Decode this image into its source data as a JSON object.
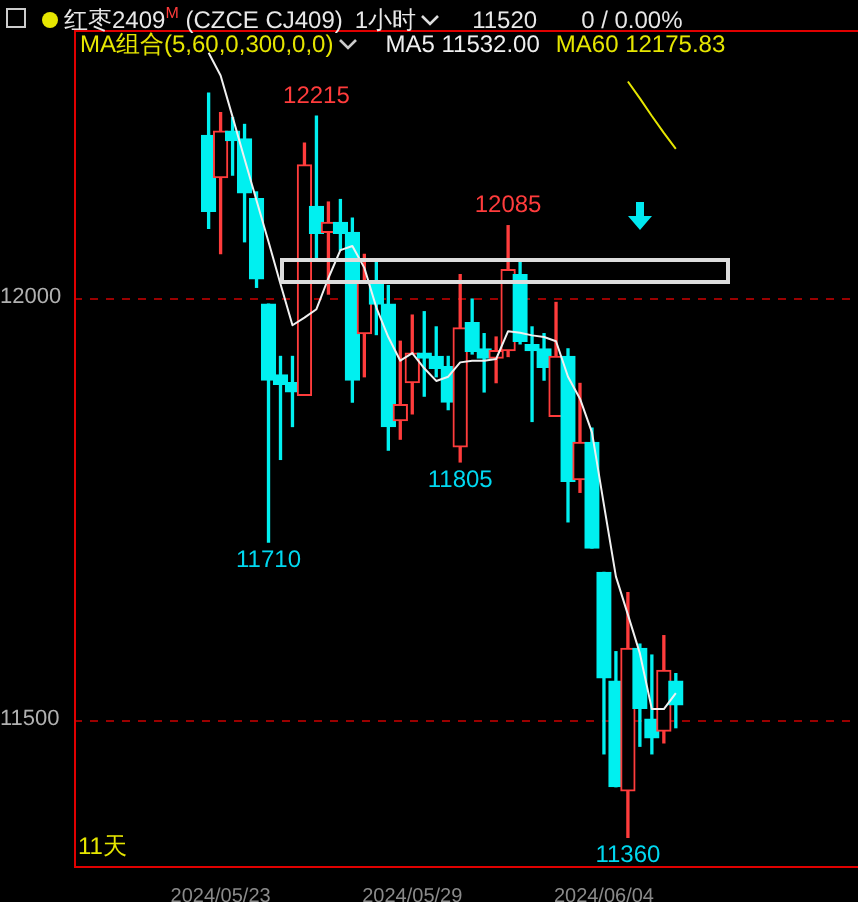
{
  "chart_data": {
    "type": "candlestick",
    "title": "红枣2409$^{M}$ (CZCE CJ409)",
    "subtitle": "1小时",
    "categories": [
      null,
      "2024/05/23",
      null,
      null,
      null,
      null,
      null,
      null,
      null,
      null,
      null,
      null,
      null,
      null,
      null,
      null,
      null,
      "2024/05/29",
      null,
      null,
      null,
      null,
      null,
      null,
      null,
      null,
      null,
      null,
      null,
      null,
      null,
      null,
      null,
      "2024/06/04",
      null,
      null,
      null,
      null,
      null,
      null
    ],
    "ohlc": [
      [
        12192,
        12242,
        12082,
        12102
      ],
      [
        12142,
        12219,
        12052,
        12197
      ],
      [
        12197,
        12213,
        12145,
        12186
      ],
      [
        12188,
        12205,
        12066,
        12124
      ],
      [
        12117,
        12125,
        12012,
        12022
      ],
      [
        11992,
        11992,
        11710,
        11902
      ],
      [
        11908,
        11930,
        11808,
        11897
      ],
      [
        11899,
        11930,
        11847,
        11888
      ],
      [
        11884,
        12183,
        11884,
        12157
      ],
      [
        12108,
        12215,
        12047,
        12076
      ],
      [
        12077,
        12113,
        12004,
        12089
      ],
      [
        12089,
        12116,
        12056,
        12076
      ],
      [
        12077,
        12094,
        11876,
        11902
      ],
      [
        11957,
        12051,
        11906,
        12018
      ],
      [
        12020,
        12045,
        11956,
        11992
      ],
      [
        11992,
        12014,
        11819,
        11847
      ],
      [
        11854,
        11948,
        11832,
        11873
      ],
      [
        11899,
        11979,
        11862,
        11934
      ],
      [
        11934,
        11983,
        11883,
        11928
      ],
      [
        11930,
        11965,
        11906,
        11916
      ],
      [
        11918,
        11930,
        11867,
        11876
      ],
      [
        11823,
        12027,
        11805,
        11964
      ],
      [
        11970,
        11998,
        11933,
        11936
      ],
      [
        11939,
        11957,
        11888,
        11928
      ],
      [
        11928,
        11953,
        11899,
        11937
      ],
      [
        11937,
        12085,
        11930,
        12033
      ],
      [
        12027,
        12045,
        11945,
        11948
      ],
      [
        11944,
        11965,
        11853,
        11937
      ],
      [
        11939,
        11957,
        11902,
        11917
      ],
      [
        11859,
        11994,
        11859,
        11930
      ],
      [
        11930,
        11939,
        11734,
        11782
      ],
      [
        11784,
        11898,
        11769,
        11828
      ],
      [
        11828,
        11845,
        11703,
        11703
      ],
      [
        11674,
        11674,
        11459,
        11549
      ],
      [
        11545,
        11580,
        11420,
        11420
      ],
      [
        11415,
        11650,
        11360,
        11584
      ],
      [
        11584,
        11589,
        11468,
        11513
      ],
      [
        11500,
        11576,
        11459,
        11478
      ],
      [
        11486,
        11599,
        11472,
        11558
      ],
      [
        11545,
        11554,
        11490,
        11517
      ]
    ],
    "colors": [
      "#00f0f0",
      "#ff3c3c",
      "#00f0f0",
      "#00f0f0",
      "#00f0f0",
      "#00f0f0",
      "#00f0f0",
      "#00f0f0",
      "#ff3c3c",
      "#00f0f0",
      "#ff3c3c",
      "#00f0f0",
      "#00f0f0",
      "#ff3c3c",
      "#00f0f0",
      "#00f0f0",
      "#ff3c3c",
      "#ff3c3c",
      "#00f0f0",
      "#00f0f0",
      "#00f0f0",
      "#ff3c3c",
      "#00f0f0",
      "#00f0f0",
      "#ff3c3c",
      "#ff3c3c",
      "#00f0f0",
      "#00f0f0",
      "#00f0f0",
      "#ff3c3c",
      "#00f0f0",
      "#ff3c3c",
      "#00f0f0",
      "#00f0f0",
      "#00f0f0",
      "#ff3c3c",
      "#00f0f0",
      "#00f0f0",
      "#ff3c3c",
      "#00f0f0"
    ],
    "series": [
      {
        "type": "line",
        "name": "MA5 11532.00",
        "color": "#f0f0f0",
        "values": [
          12290,
          12263,
          12214,
          12164,
          12115,
          12066,
          12016,
          11967,
          11976,
          11986,
          12023,
          12056,
          12061,
          12035,
          11988,
          11953,
          11925,
          11934,
          11916,
          11901,
          11906,
          11923,
          11925,
          11925,
          11927,
          11960,
          11958,
          11955,
          11953,
          11948,
          11906,
          11880,
          11840,
          11754,
          11669,
          11624,
          11578,
          11512,
          11512,
          11531
        ]
      },
      {
        "type": "line",
        "name": "MA60 12175.83",
        "color": "#e6e600",
        "values": [
          null,
          null,
          null,
          null,
          null,
          null,
          null,
          null,
          null,
          null,
          null,
          null,
          null,
          null,
          null,
          null,
          null,
          null,
          null,
          null,
          null,
          null,
          null,
          null,
          null,
          null,
          null,
          null,
          null,
          null,
          null,
          null,
          null,
          null,
          null,
          12256,
          12236,
          12215,
          12195,
          12176
        ]
      }
    ],
    "legend_title": "MA组合(5,60,0,300,0,0)",
    "legend": "top",
    "ylim": [
      11326,
      12317
    ],
    "yticks": [
      11500,
      12000
    ],
    "grid": "y",
    "annotations": [
      "11520",
      "0 / 0.00%",
      "11天",
      {
        "text": "12215",
        "y": 12215
      },
      {
        "text": "11710",
        "y": 11710
      },
      {
        "text": "11805",
        "y": 11805
      },
      {
        "text": "12085",
        "y": 12085
      },
      {
        "text": "11360",
        "y": 11360
      }
    ]
  }
}
